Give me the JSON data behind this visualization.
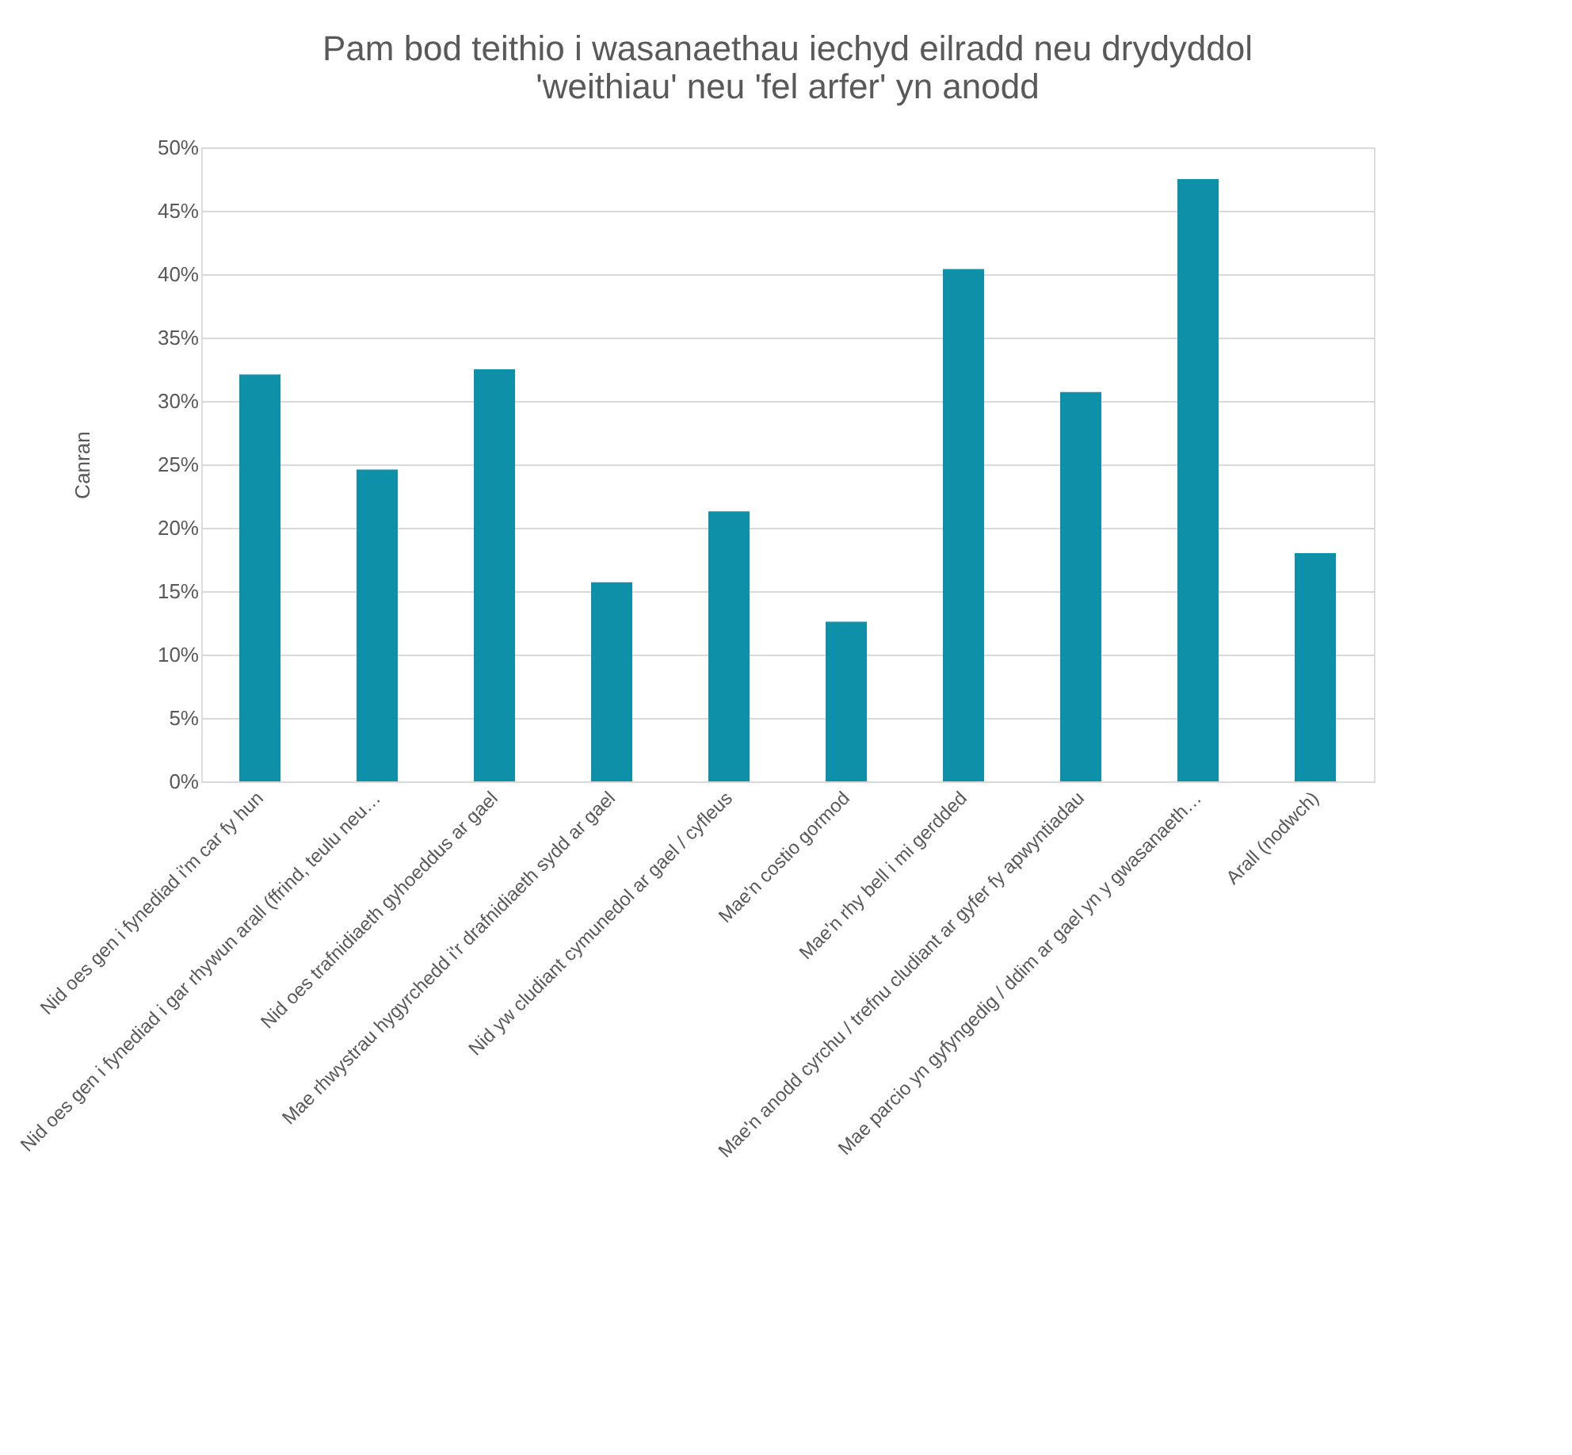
{
  "chart_data": {
    "type": "bar",
    "title": "Pam bod teithio i wasanaethau iechyd eilradd neu drydyddol 'weithiau' neu 'fel arfer' yn anodd",
    "ylabel": "Canran",
    "categories": [
      "Nid oes gen i fynediad i'm car fy hun",
      "Nid oes gen i fynediad i gar rhywun arall (ffrind, teulu neu…",
      "Nid oes trafnidiaeth gyhoeddus ar gael",
      "Mae rhwystrau hygyrchedd i'r drafnidiaeth sydd ar gael",
      "Nid yw cludiant cymunedol ar gael / cyfleus",
      "Mae'n costio gormod",
      "Mae'n rhy bell i mi gerdded",
      "Mae'n anodd cyrchu / trefnu cludiant ar gyfer fy apwyntiadau",
      "Mae parcio yn gyfyngedig / ddim ar gael yn y gwasanaeth…",
      "Arall (nodwch)"
    ],
    "values": [
      32.1,
      24.6,
      32.5,
      15.7,
      21.3,
      12.6,
      40.4,
      30.7,
      47.5,
      18.0
    ],
    "color": "#0e91a8",
    "ylim": [
      0,
      50
    ],
    "yticks": [
      {
        "value": 0,
        "label": "0%"
      },
      {
        "value": 5,
        "label": "5%"
      },
      {
        "value": 10,
        "label": "10%"
      },
      {
        "value": 15,
        "label": "15%"
      },
      {
        "value": 20,
        "label": "20%"
      },
      {
        "value": 25,
        "label": "25%"
      },
      {
        "value": 30,
        "label": "30%"
      },
      {
        "value": 35,
        "label": "35%"
      },
      {
        "value": 40,
        "label": "40%"
      },
      {
        "value": 45,
        "label": "45%"
      },
      {
        "value": 50,
        "label": "50%"
      }
    ],
    "grid": "y"
  }
}
